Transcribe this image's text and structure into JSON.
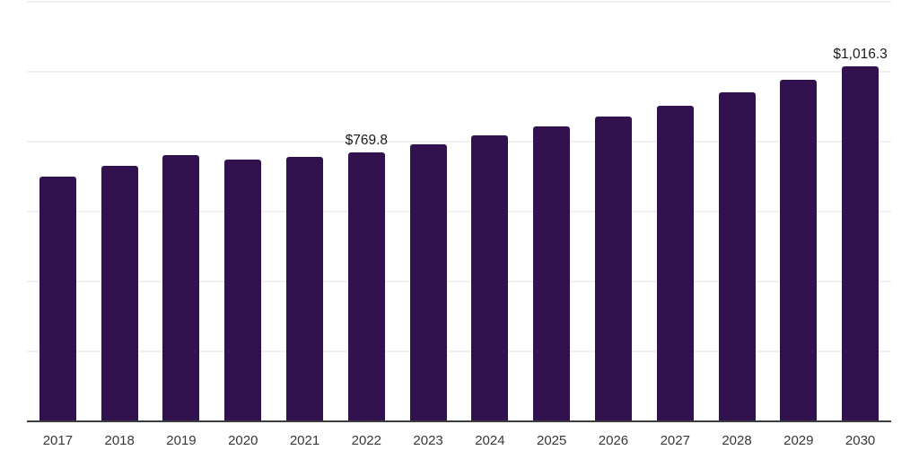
{
  "chart_data": {
    "type": "bar",
    "title": "",
    "xlabel": "",
    "ylabel": "",
    "categories": [
      "2017",
      "2018",
      "2019",
      "2020",
      "2021",
      "2022",
      "2023",
      "2024",
      "2025",
      "2026",
      "2027",
      "2028",
      "2029",
      "2030"
    ],
    "values": [
      700.1,
      730.0,
      761.5,
      749.6,
      756.4,
      769.8,
      793.0,
      818.6,
      844.1,
      871.5,
      903.7,
      940.6,
      976.4,
      1016.3
    ],
    "data_labels": [
      {
        "category": "2022",
        "text": "$769.8"
      },
      {
        "category": "2030",
        "text": "$1,016.3"
      }
    ],
    "ylim": [
      0,
      1200
    ],
    "gridline_interval": 200,
    "grid": "horizontal",
    "legend_position": "none",
    "colors": {
      "bar": "#32124e",
      "gridline": "#f1f1f1",
      "axis_line": "#3d3d3d",
      "data_label_text": "#1b1b1b",
      "tick_label_text": "#383838",
      "background": "#ffffff"
    }
  }
}
